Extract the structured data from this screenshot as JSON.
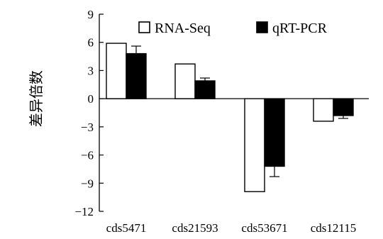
{
  "chart_data": {
    "type": "bar",
    "ylabel": "差异倍数",
    "xlabel": "",
    "title": "",
    "ylim": [
      -12,
      9
    ],
    "yticks": [
      9,
      6,
      3,
      0,
      -3,
      -6,
      -9,
      -12
    ],
    "grid": false,
    "legend_position": "top",
    "categories": [
      "cds5471",
      "cds21593",
      "cds53671",
      "cds12115"
    ],
    "series": [
      {
        "name": "RNA-Seq",
        "values": [
          5.9,
          3.7,
          -9.9,
          -2.4
        ],
        "errors": [
          0,
          0,
          0,
          0
        ],
        "color": "#ffffff"
      },
      {
        "name": "qRT-PCR",
        "values": [
          4.8,
          1.9,
          -7.2,
          -1.8
        ],
        "errors": [
          0.8,
          0.3,
          1.1,
          0.3
        ],
        "color": "#000000"
      }
    ]
  }
}
